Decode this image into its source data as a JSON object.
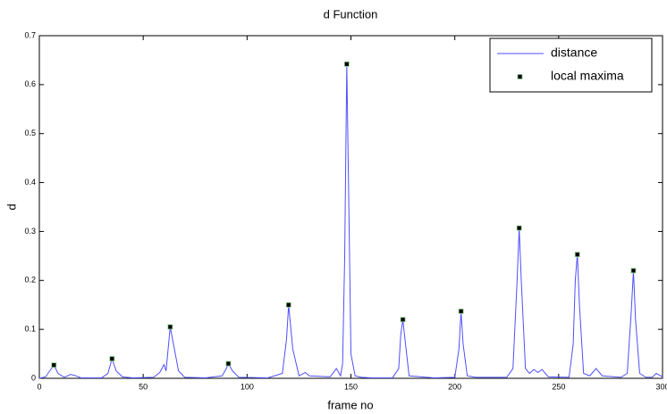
{
  "chart_data": {
    "type": "line",
    "title": "d Function",
    "x_label": "frame no",
    "y_label": "d",
    "xlim": [
      0,
      300
    ],
    "xticks": [
      0,
      50,
      100,
      150,
      200,
      250,
      300
    ],
    "ylim": [
      0,
      0.7
    ],
    "yticks": [
      0,
      0.1,
      0.2,
      0.3,
      0.4,
      0.5,
      0.6,
      0.7
    ],
    "legend": "northeast",
    "series": [
      {
        "name": "distance",
        "color": "#4f4fff",
        "x": [
          0,
          3,
          5,
          7,
          9,
          12,
          15,
          17,
          20,
          30,
          33,
          35,
          37,
          40,
          45,
          55,
          58,
          60,
          61,
          63,
          65,
          67,
          70,
          80,
          88,
          90,
          91,
          93,
          96,
          110,
          117,
          119,
          120,
          122,
          125,
          128,
          130,
          140,
          143,
          145,
          146,
          147,
          148,
          149,
          150,
          152,
          155,
          160,
          170,
          173,
          174,
          175,
          176,
          178,
          190,
          200,
          202,
          203,
          204,
          206,
          210,
          225,
          228,
          230,
          231,
          232,
          234,
          236,
          238,
          240,
          242,
          245,
          255,
          257,
          258,
          259,
          260,
          262,
          265,
          268,
          271,
          280,
          283,
          285,
          286,
          287,
          289,
          292,
          295,
          297,
          300
        ],
        "values": [
          0,
          0.003,
          0.015,
          0.027,
          0.01,
          0.002,
          0.008,
          0.006,
          0.001,
          0.001,
          0.01,
          0.04,
          0.015,
          0.003,
          0.001,
          0.002,
          0.012,
          0.028,
          0.015,
          0.105,
          0.06,
          0.015,
          0.002,
          0.001,
          0.005,
          0.02,
          0.03,
          0.015,
          0.002,
          0.001,
          0.01,
          0.08,
          0.15,
          0.06,
          0.005,
          0.012,
          0.005,
          0.003,
          0.02,
          0.005,
          0.03,
          0.25,
          0.642,
          0.35,
          0.05,
          0.005,
          0.002,
          0.001,
          0.001,
          0.02,
          0.09,
          0.12,
          0.08,
          0.005,
          0.001,
          0.002,
          0.06,
          0.137,
          0.07,
          0.005,
          0.002,
          0.002,
          0.02,
          0.2,
          0.307,
          0.2,
          0.02,
          0.01,
          0.018,
          0.012,
          0.018,
          0.003,
          0.002,
          0.07,
          0.2,
          0.253,
          0.15,
          0.01,
          0.005,
          0.02,
          0.005,
          0.002,
          0.01,
          0.14,
          0.22,
          0.12,
          0.01,
          0.002,
          0.002,
          0.01,
          0.003
        ]
      },
      {
        "name": "local maxima",
        "type": "scatter",
        "color": "#000000",
        "x": [
          7,
          35,
          63,
          91,
          120,
          148,
          175,
          203,
          231,
          259,
          286
        ],
        "values": [
          0.027,
          0.04,
          0.105,
          0.03,
          0.15,
          0.642,
          0.12,
          0.137,
          0.307,
          0.253,
          0.22
        ]
      }
    ]
  }
}
